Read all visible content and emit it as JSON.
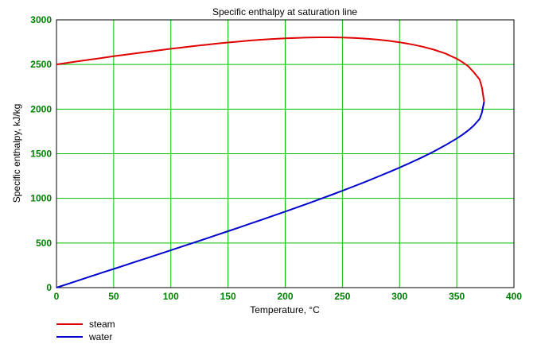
{
  "chart_data": {
    "type": "line",
    "title": "Specific enthalpy at saturation line",
    "xlabel": "Temperature, °C",
    "ylabel": "Specific enthalpy, kJ/kg",
    "xlim": [
      0,
      400
    ],
    "ylim": [
      0,
      3000
    ],
    "x_ticks": [
      0,
      50,
      100,
      150,
      200,
      250,
      300,
      350,
      400
    ],
    "y_ticks": [
      0,
      500,
      1000,
      1500,
      2000,
      2500,
      3000
    ],
    "grid": true,
    "legend_position": "bottom-left",
    "series": [
      {
        "name": "steam",
        "color": "#e00000",
        "x": [
          0,
          10,
          20,
          30,
          40,
          50,
          60,
          70,
          80,
          90,
          100,
          110,
          120,
          130,
          140,
          150,
          160,
          170,
          180,
          190,
          200,
          210,
          220,
          230,
          240,
          250,
          260,
          270,
          280,
          290,
          300,
          310,
          320,
          330,
          340,
          350,
          355,
          360,
          365,
          370,
          372,
          373.9
        ],
        "y": [
          2501,
          2519,
          2538,
          2556,
          2574,
          2592,
          2609,
          2626,
          2643,
          2660,
          2676,
          2691,
          2706,
          2720,
          2734,
          2746,
          2758,
          2769,
          2778,
          2786,
          2793,
          2798,
          2802,
          2804,
          2804,
          2802,
          2797,
          2790,
          2780,
          2766,
          2749,
          2727,
          2700,
          2666,
          2623,
          2565,
          2526,
          2481,
          2412,
          2332,
          2242,
          2084
        ]
      },
      {
        "name": "water",
        "color": "#0000d0",
        "x": [
          0,
          10,
          20,
          30,
          40,
          50,
          60,
          70,
          80,
          90,
          100,
          110,
          120,
          130,
          140,
          150,
          160,
          170,
          180,
          190,
          200,
          210,
          220,
          230,
          240,
          250,
          260,
          270,
          280,
          290,
          300,
          310,
          320,
          330,
          340,
          350,
          355,
          360,
          365,
          370,
          372,
          373.9
        ],
        "y": [
          0,
          42,
          84,
          126,
          168,
          209,
          251,
          293,
          335,
          377,
          419,
          461,
          504,
          546,
          589,
          632,
          675,
          719,
          763,
          807,
          852,
          897,
          943,
          990,
          1037,
          1085,
          1135,
          1185,
          1237,
          1290,
          1345,
          1402,
          1462,
          1526,
          1595,
          1671,
          1713,
          1761,
          1817,
          1891,
          1961,
          2084
        ]
      }
    ]
  }
}
